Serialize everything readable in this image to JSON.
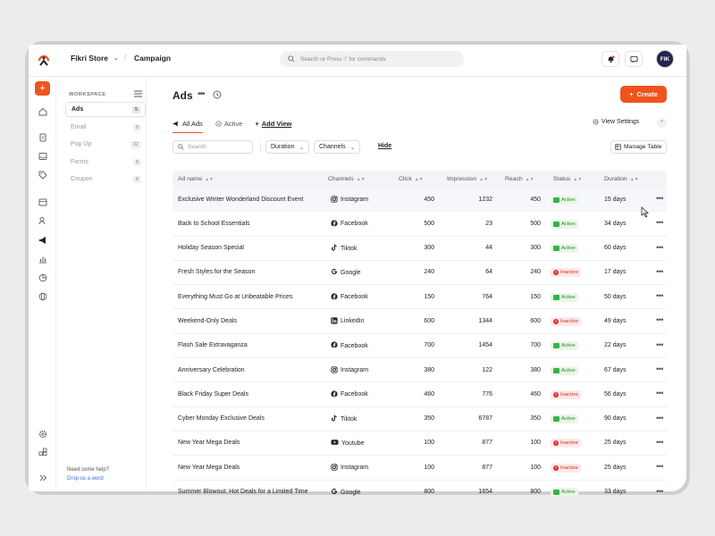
{
  "topbar": {
    "store_name": "Fikri Store",
    "breadcrumb": "Campaign",
    "search_placeholder": "Search or Press '/' for commands",
    "avatar_initials": "FIK"
  },
  "rail": {
    "add_label": "+"
  },
  "workspace": {
    "label": "WORKSPACE",
    "items": [
      {
        "label": "Ads",
        "count": "5",
        "active": true
      },
      {
        "label": "Email",
        "count": "8"
      },
      {
        "label": "Pop Up",
        "count": "32"
      },
      {
        "label": "Forms",
        "count": "8"
      },
      {
        "label": "Coupon",
        "count": "8"
      }
    ],
    "help_text": "Need some help?",
    "help_link": "Drop us a word"
  },
  "page": {
    "title": "Ads",
    "create_label": "Create",
    "tabs": [
      {
        "label": "All Ads"
      },
      {
        "label": "Active"
      },
      {
        "label": "Add View"
      }
    ],
    "view_settings": "View Settings",
    "search_placeholder": "Search",
    "filters": {
      "duration": "Duration",
      "channels": "Channels",
      "hide": "Hide",
      "manage": "Manage Table"
    }
  },
  "table": {
    "columns": [
      "Ad name",
      "Channels",
      "Click",
      "Impression",
      "Reach",
      "Status",
      "Duration"
    ],
    "rows": [
      {
        "name": "Exclusive Winter Wonderland Discount Event",
        "channel": "Instagram",
        "click": "450",
        "impression": "1232",
        "reach": "450",
        "status": "Active",
        "duration": "15 days"
      },
      {
        "name": "Back to School Essentials",
        "channel": "Facebook",
        "click": "500",
        "impression": "23",
        "reach": "500",
        "status": "Active",
        "duration": "34 days"
      },
      {
        "name": "Holiday Season Special",
        "channel": "Tiktok",
        "click": "300",
        "impression": "44",
        "reach": "300",
        "status": "Active",
        "duration": "60 days"
      },
      {
        "name": "Fresh Styles for the Season",
        "channel": "Google",
        "click": "240",
        "impression": "64",
        "reach": "240",
        "status": "Inactive",
        "duration": "17 days"
      },
      {
        "name": "Everything Must Go at Unbeatable Prices",
        "channel": "Facebook",
        "click": "150",
        "impression": "764",
        "reach": "150",
        "status": "Active",
        "duration": "50 days"
      },
      {
        "name": "Weekend-Only Deals",
        "channel": "LinkedIn",
        "click": "600",
        "impression": "1344",
        "reach": "600",
        "status": "Inactive",
        "duration": "49 days"
      },
      {
        "name": "Flash Sale Extravaganza",
        "channel": "Facebook",
        "click": "700",
        "impression": "1454",
        "reach": "700",
        "status": "Active",
        "duration": "22 days"
      },
      {
        "name": "Anniversary Celebration",
        "channel": "Instagram",
        "click": "380",
        "impression": "122",
        "reach": "380",
        "status": "Active",
        "duration": "67 days"
      },
      {
        "name": "Black Friday Super Deals",
        "channel": "Facebook",
        "click": "460",
        "impression": "776",
        "reach": "460",
        "status": "Inactive",
        "duration": "56 days"
      },
      {
        "name": "Cyber Monday Exclusive Deals",
        "channel": "Tiktok",
        "click": "350",
        "impression": "6787",
        "reach": "350",
        "status": "Active",
        "duration": "90 days"
      },
      {
        "name": "New Year Mega Deals",
        "channel": "Youtube",
        "click": "100",
        "impression": "877",
        "reach": "100",
        "status": "Inactive",
        "duration": "25 days"
      },
      {
        "name": "New Year Mega Deals",
        "channel": "Instagram",
        "click": "100",
        "impression": "877",
        "reach": "100",
        "status": "Inactive",
        "duration": "25 days"
      },
      {
        "name": "Summer Blowout: Hot Deals for a Limited Time",
        "channel": "Google",
        "click": "800",
        "impression": "1654",
        "reach": "800",
        "status": "Active",
        "duration": "33 days"
      }
    ]
  },
  "colors": {
    "accent": "#f0541e",
    "active": "#37b24d",
    "inactive": "#e03131"
  }
}
